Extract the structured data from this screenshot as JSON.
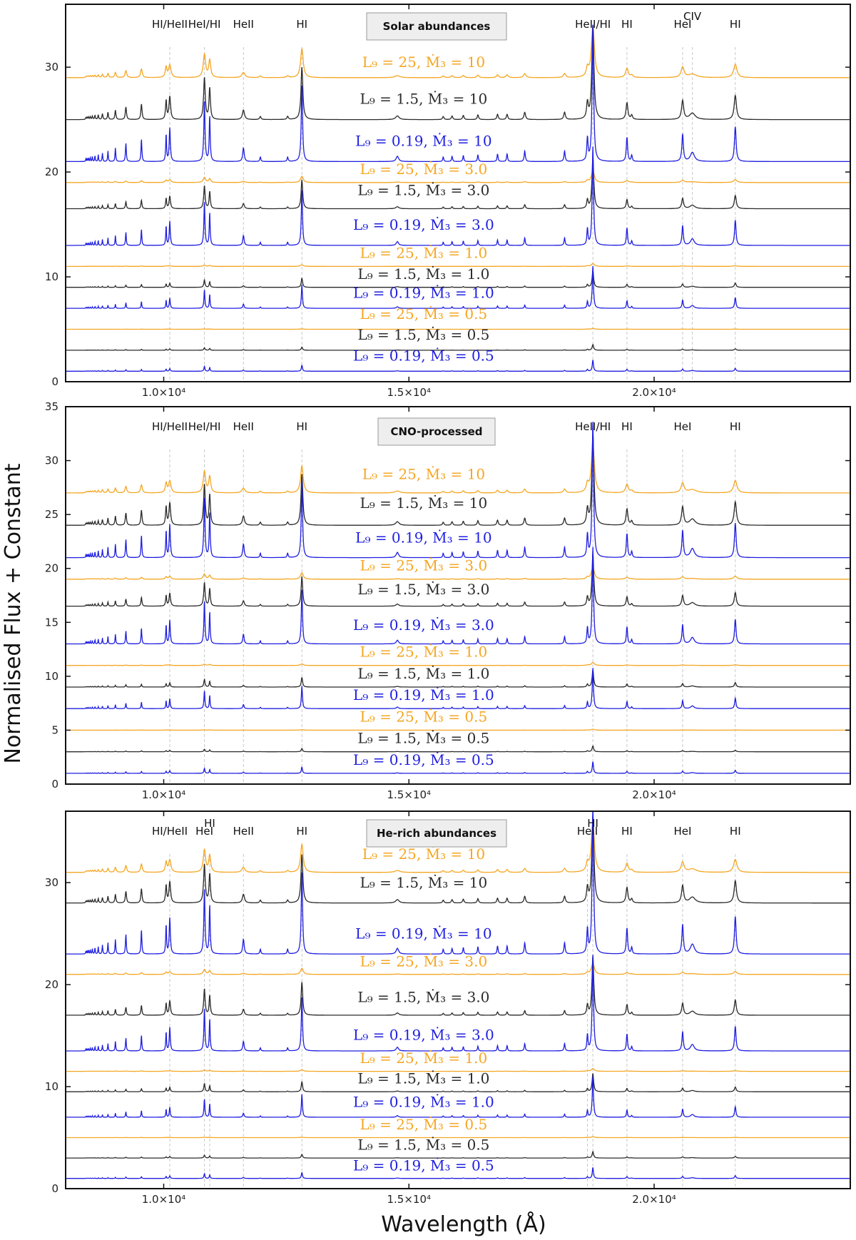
{
  "colors": {
    "orange": "#f5a623",
    "black": "#2b2b2b",
    "blue": "#1f1fe0"
  },
  "axes": {
    "xlabel": "Wavelength (Å)",
    "ylabel": "Normalised Flux + Constant",
    "xlim": [
      8000,
      24000
    ],
    "x_ticks": [
      {
        "value": 10000,
        "label": "1.0×10⁴"
      },
      {
        "value": 15000,
        "label": "1.5×10⁴"
      },
      {
        "value": 20000,
        "label": "2.0×10⁴"
      }
    ]
  },
  "chart_data": [
    {
      "type": "line",
      "title": "Solar abundances",
      "ylim": [
        0,
        36
      ],
      "y_ticks": [
        0,
        10,
        20,
        30
      ],
      "line_markers": [
        {
          "label": "HI/HeII",
          "x": 10124
        },
        {
          "label": "HeI/HI",
          "x": 10830
        },
        {
          "label": "HeII",
          "x": 11626
        },
        {
          "label": "HI",
          "x": 12818
        },
        {
          "label": "HeII/HI",
          "x": 18751
        },
        {
          "label": "HI",
          "x": 19446
        },
        {
          "label": "HeI",
          "x": 20581
        },
        {
          "label": "CIV",
          "x": 20780
        },
        {
          "label": "HI",
          "x": 21655
        }
      ],
      "series": [
        {
          "label": "L₉ = 25, Ṁ₃ = 10",
          "color": "orange",
          "offset": 29.0,
          "strength": 0.55,
          "broad": 2.0,
          "label_x": 15300,
          "label_y": 30.0
        },
        {
          "label": "L₉ = 1.5, Ṁ₃ = 10",
          "color": "black",
          "offset": 25.0,
          "strength": 1.0,
          "broad": 1.4,
          "label_x": 15300,
          "label_y": 26.5
        },
        {
          "label": "L₉ = 0.19, Ṁ₃ = 10",
          "color": "blue",
          "offset": 21.0,
          "strength": 1.45,
          "broad": 1.0,
          "label_x": 15300,
          "label_y": 22.5
        },
        {
          "label": "L₉ = 25, Ṁ₃ = 3.0",
          "color": "orange",
          "offset": 19.0,
          "strength": 0.12,
          "broad": 2.0,
          "label_x": 15300,
          "label_y": 19.8
        },
        {
          "label": "L₉ = 1.5, Ṁ₃ = 3.0",
          "color": "black",
          "offset": 16.5,
          "strength": 0.55,
          "broad": 1.2,
          "label_x": 15300,
          "label_y": 17.8
        },
        {
          "label": "L₉ = 0.19, Ṁ₃ = 3.0",
          "color": "blue",
          "offset": 13.0,
          "strength": 1.05,
          "broad": 0.9,
          "label_x": 15300,
          "label_y": 14.5
        },
        {
          "label": "L₉ = 25, Ṁ₃ = 1.0",
          "color": "orange",
          "offset": 11.0,
          "strength": 0.03,
          "broad": 2.0,
          "label_x": 15300,
          "label_y": 11.8
        },
        {
          "label": "L₉ = 1.5, Ṁ₃ = 1.0",
          "color": "black",
          "offset": 9.0,
          "strength": 0.18,
          "broad": 1.0,
          "label_x": 15300,
          "label_y": 9.8
        },
        {
          "label": "L₉ = 0.19, Ṁ₃ = 1.0",
          "color": "blue",
          "offset": 7.0,
          "strength": 0.45,
          "broad": 0.8,
          "label_x": 15300,
          "label_y": 8.0
        },
        {
          "label": "L₉ = 25, Ṁ₃ = 0.5",
          "color": "orange",
          "offset": 5.0,
          "strength": 0.01,
          "broad": 2.0,
          "label_x": 15300,
          "label_y": 6.0
        },
        {
          "label": "L₉ = 1.5, Ṁ₃ = 0.5",
          "color": "black",
          "offset": 3.0,
          "strength": 0.06,
          "broad": 1.0,
          "label_x": 15300,
          "label_y": 4.0
        },
        {
          "label": "L₉ = 0.19, Ṁ₃ = 0.5",
          "color": "blue",
          "offset": 1.0,
          "strength": 0.12,
          "broad": 0.8,
          "label_x": 15300,
          "label_y": 2.0
        }
      ]
    },
    {
      "type": "line",
      "title": "CNO-processed",
      "ylim": [
        0,
        35
      ],
      "y_ticks": [
        0,
        5,
        10,
        15,
        20,
        25,
        30,
        35
      ],
      "line_markers": [
        {
          "label": "HI/HeII",
          "x": 10124
        },
        {
          "label": "HeI/HI",
          "x": 10830
        },
        {
          "label": "HeII",
          "x": 11626
        },
        {
          "label": "HI",
          "x": 12818
        },
        {
          "label": "HeII/HI",
          "x": 18751
        },
        {
          "label": "HI",
          "x": 19446
        },
        {
          "label": "HeI",
          "x": 20581
        },
        {
          "label": "HI",
          "x": 21655
        }
      ],
      "series": [
        {
          "label": "L₉ = 25, Ṁ₃ = 10",
          "color": "orange",
          "offset": 27.0,
          "strength": 0.5,
          "broad": 2.0,
          "label_x": 15300,
          "label_y": 28.3
        },
        {
          "label": "L₉ = 1.5, Ṁ₃ = 10",
          "color": "black",
          "offset": 24.0,
          "strength": 0.95,
          "broad": 1.4,
          "label_x": 15300,
          "label_y": 25.6
        },
        {
          "label": "L₉ = 0.19, Ṁ₃ = 10",
          "color": "blue",
          "offset": 21.0,
          "strength": 1.4,
          "broad": 1.0,
          "label_x": 15300,
          "label_y": 22.4
        },
        {
          "label": "L₉ = 25, Ṁ₃ = 3.0",
          "color": "orange",
          "offset": 19.0,
          "strength": 0.12,
          "broad": 2.0,
          "label_x": 15300,
          "label_y": 19.8
        },
        {
          "label": "L₉ = 1.5, Ṁ₃ = 3.0",
          "color": "black",
          "offset": 16.5,
          "strength": 0.55,
          "broad": 1.2,
          "label_x": 15300,
          "label_y": 17.6
        },
        {
          "label": "L₉ = 0.19, Ṁ₃ = 3.0",
          "color": "blue",
          "offset": 13.0,
          "strength": 1.0,
          "broad": 0.9,
          "label_x": 15300,
          "label_y": 14.3
        },
        {
          "label": "L₉ = 25, Ṁ₃ = 1.0",
          "color": "orange",
          "offset": 11.0,
          "strength": 0.03,
          "broad": 2.0,
          "label_x": 15300,
          "label_y": 11.8
        },
        {
          "label": "L₉ = 1.5, Ṁ₃ = 1.0",
          "color": "black",
          "offset": 9.0,
          "strength": 0.18,
          "broad": 1.0,
          "label_x": 15300,
          "label_y": 9.8
        },
        {
          "label": "L₉ = 0.19, Ṁ₃ = 1.0",
          "color": "blue",
          "offset": 7.0,
          "strength": 0.42,
          "broad": 0.8,
          "label_x": 15300,
          "label_y": 7.8
        },
        {
          "label": "L₉ = 25, Ṁ₃ = 0.5",
          "color": "orange",
          "offset": 5.0,
          "strength": 0.01,
          "broad": 2.0,
          "label_x": 15300,
          "label_y": 5.8
        },
        {
          "label": "L₉ = 1.5, Ṁ₃ = 0.5",
          "color": "black",
          "offset": 3.0,
          "strength": 0.06,
          "broad": 1.0,
          "label_x": 15300,
          "label_y": 3.8
        },
        {
          "label": "L₉ = 0.19, Ṁ₃ = 0.5",
          "color": "blue",
          "offset": 1.0,
          "strength": 0.12,
          "broad": 0.8,
          "label_x": 15300,
          "label_y": 1.8
        }
      ]
    },
    {
      "type": "line",
      "title": "He-rich abundances",
      "ylim": [
        0,
        37
      ],
      "y_ticks": [
        0,
        10,
        20,
        30
      ],
      "line_markers": [
        {
          "label": "HI/HeII",
          "x": 10124
        },
        {
          "label": "HeI",
          "x": 10830
        },
        {
          "label": "HI",
          "x": 10938
        },
        {
          "label": "HeII",
          "x": 11626
        },
        {
          "label": "HI",
          "x": 12818
        },
        {
          "label": "HeII",
          "x": 18640
        },
        {
          "label": "HI",
          "x": 18751
        },
        {
          "label": "HI",
          "x": 19446
        },
        {
          "label": "HeI",
          "x": 20581
        },
        {
          "label": "HI",
          "x": 21655
        }
      ],
      "series": [
        {
          "label": "L₉ = 25, Ṁ₃ = 10",
          "color": "orange",
          "offset": 31.0,
          "strength": 0.55,
          "broad": 2.0,
          "label_x": 15300,
          "label_y": 32.3
        },
        {
          "label": "L₉ = 1.5, Ṁ₃ = 10",
          "color": "black",
          "offset": 28.0,
          "strength": 0.95,
          "broad": 1.4,
          "label_x": 15300,
          "label_y": 29.5
        },
        {
          "label": "L₉ = 0.19, Ṁ₃ = 10",
          "color": "blue",
          "offset": 23.0,
          "strength": 1.6,
          "broad": 1.0,
          "label_x": 15300,
          "label_y": 24.5
        },
        {
          "label": "L₉ = 25, Ṁ₃ = 3.0",
          "color": "orange",
          "offset": 21.0,
          "strength": 0.12,
          "broad": 2.0,
          "label_x": 15300,
          "label_y": 21.8
        },
        {
          "label": "L₉ = 1.5, Ṁ₃ = 3.0",
          "color": "black",
          "offset": 17.0,
          "strength": 0.65,
          "broad": 1.2,
          "label_x": 15300,
          "label_y": 18.3
        },
        {
          "label": "L₉ = 0.19, Ṁ₃ = 3.0",
          "color": "blue",
          "offset": 13.5,
          "strength": 1.05,
          "broad": 0.9,
          "label_x": 15300,
          "label_y": 14.6
        },
        {
          "label": "L₉ = 25, Ṁ₃ = 1.0",
          "color": "orange",
          "offset": 11.5,
          "strength": 0.03,
          "broad": 2.0,
          "label_x": 15300,
          "label_y": 12.3
        },
        {
          "label": "L₉ = 1.5, Ṁ₃ = 1.0",
          "color": "black",
          "offset": 9.5,
          "strength": 0.2,
          "broad": 1.0,
          "label_x": 15300,
          "label_y": 10.3
        },
        {
          "label": "L₉ = 0.19, Ṁ₃ = 1.0",
          "color": "blue",
          "offset": 7.0,
          "strength": 0.45,
          "broad": 0.8,
          "label_x": 15300,
          "label_y": 8.0
        },
        {
          "label": "L₉ = 25, Ṁ₃ = 0.5",
          "color": "orange",
          "offset": 5.0,
          "strength": 0.01,
          "broad": 2.0,
          "label_x": 15300,
          "label_y": 5.8
        },
        {
          "label": "L₉ = 1.5, Ṁ₃ = 0.5",
          "color": "black",
          "offset": 3.0,
          "strength": 0.07,
          "broad": 1.0,
          "label_x": 15300,
          "label_y": 3.8
        },
        {
          "label": "L₉ = 0.19, Ṁ₃ = 0.5",
          "color": "blue",
          "offset": 1.0,
          "strength": 0.12,
          "broad": 0.8,
          "label_x": 15300,
          "label_y": 1.8
        }
      ]
    }
  ]
}
